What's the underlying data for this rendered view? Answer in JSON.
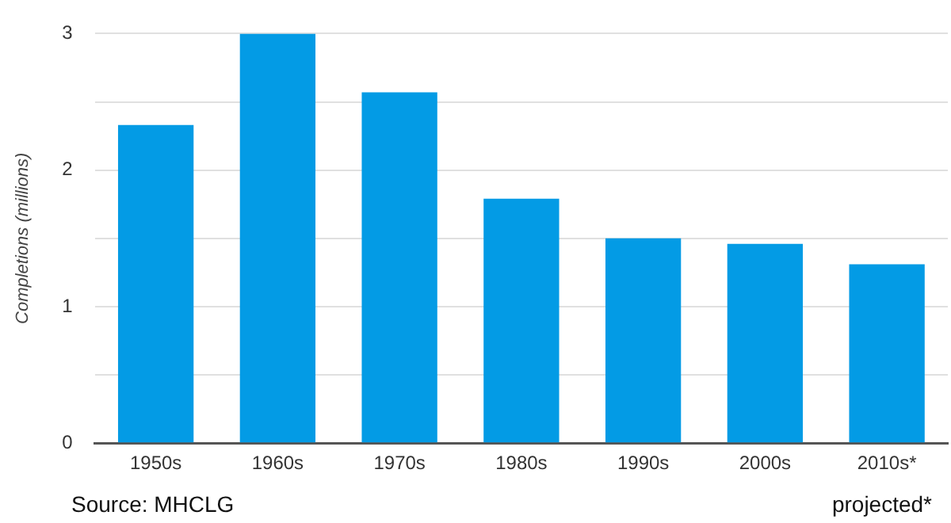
{
  "chart_data": {
    "type": "bar",
    "ylabel": "Completions (millions)",
    "categories": [
      "1950s",
      "1960s",
      "1970s",
      "1980s",
      "1990s",
      "2000s",
      "2010s*"
    ],
    "values": [
      2.33,
      3.0,
      2.57,
      1.79,
      1.5,
      1.46,
      1.31
    ],
    "color": "#039be5",
    "ylim": [
      0,
      3
    ],
    "yticks": [
      0,
      {
        "value": 0.5,
        "label": null
      },
      1,
      {
        "value": 1.5,
        "label": null
      },
      2,
      {
        "value": 2.5,
        "label": null
      },
      3
    ],
    "grid": "y",
    "annotations": [
      "Source: MHCLG",
      "projected*"
    ]
  }
}
